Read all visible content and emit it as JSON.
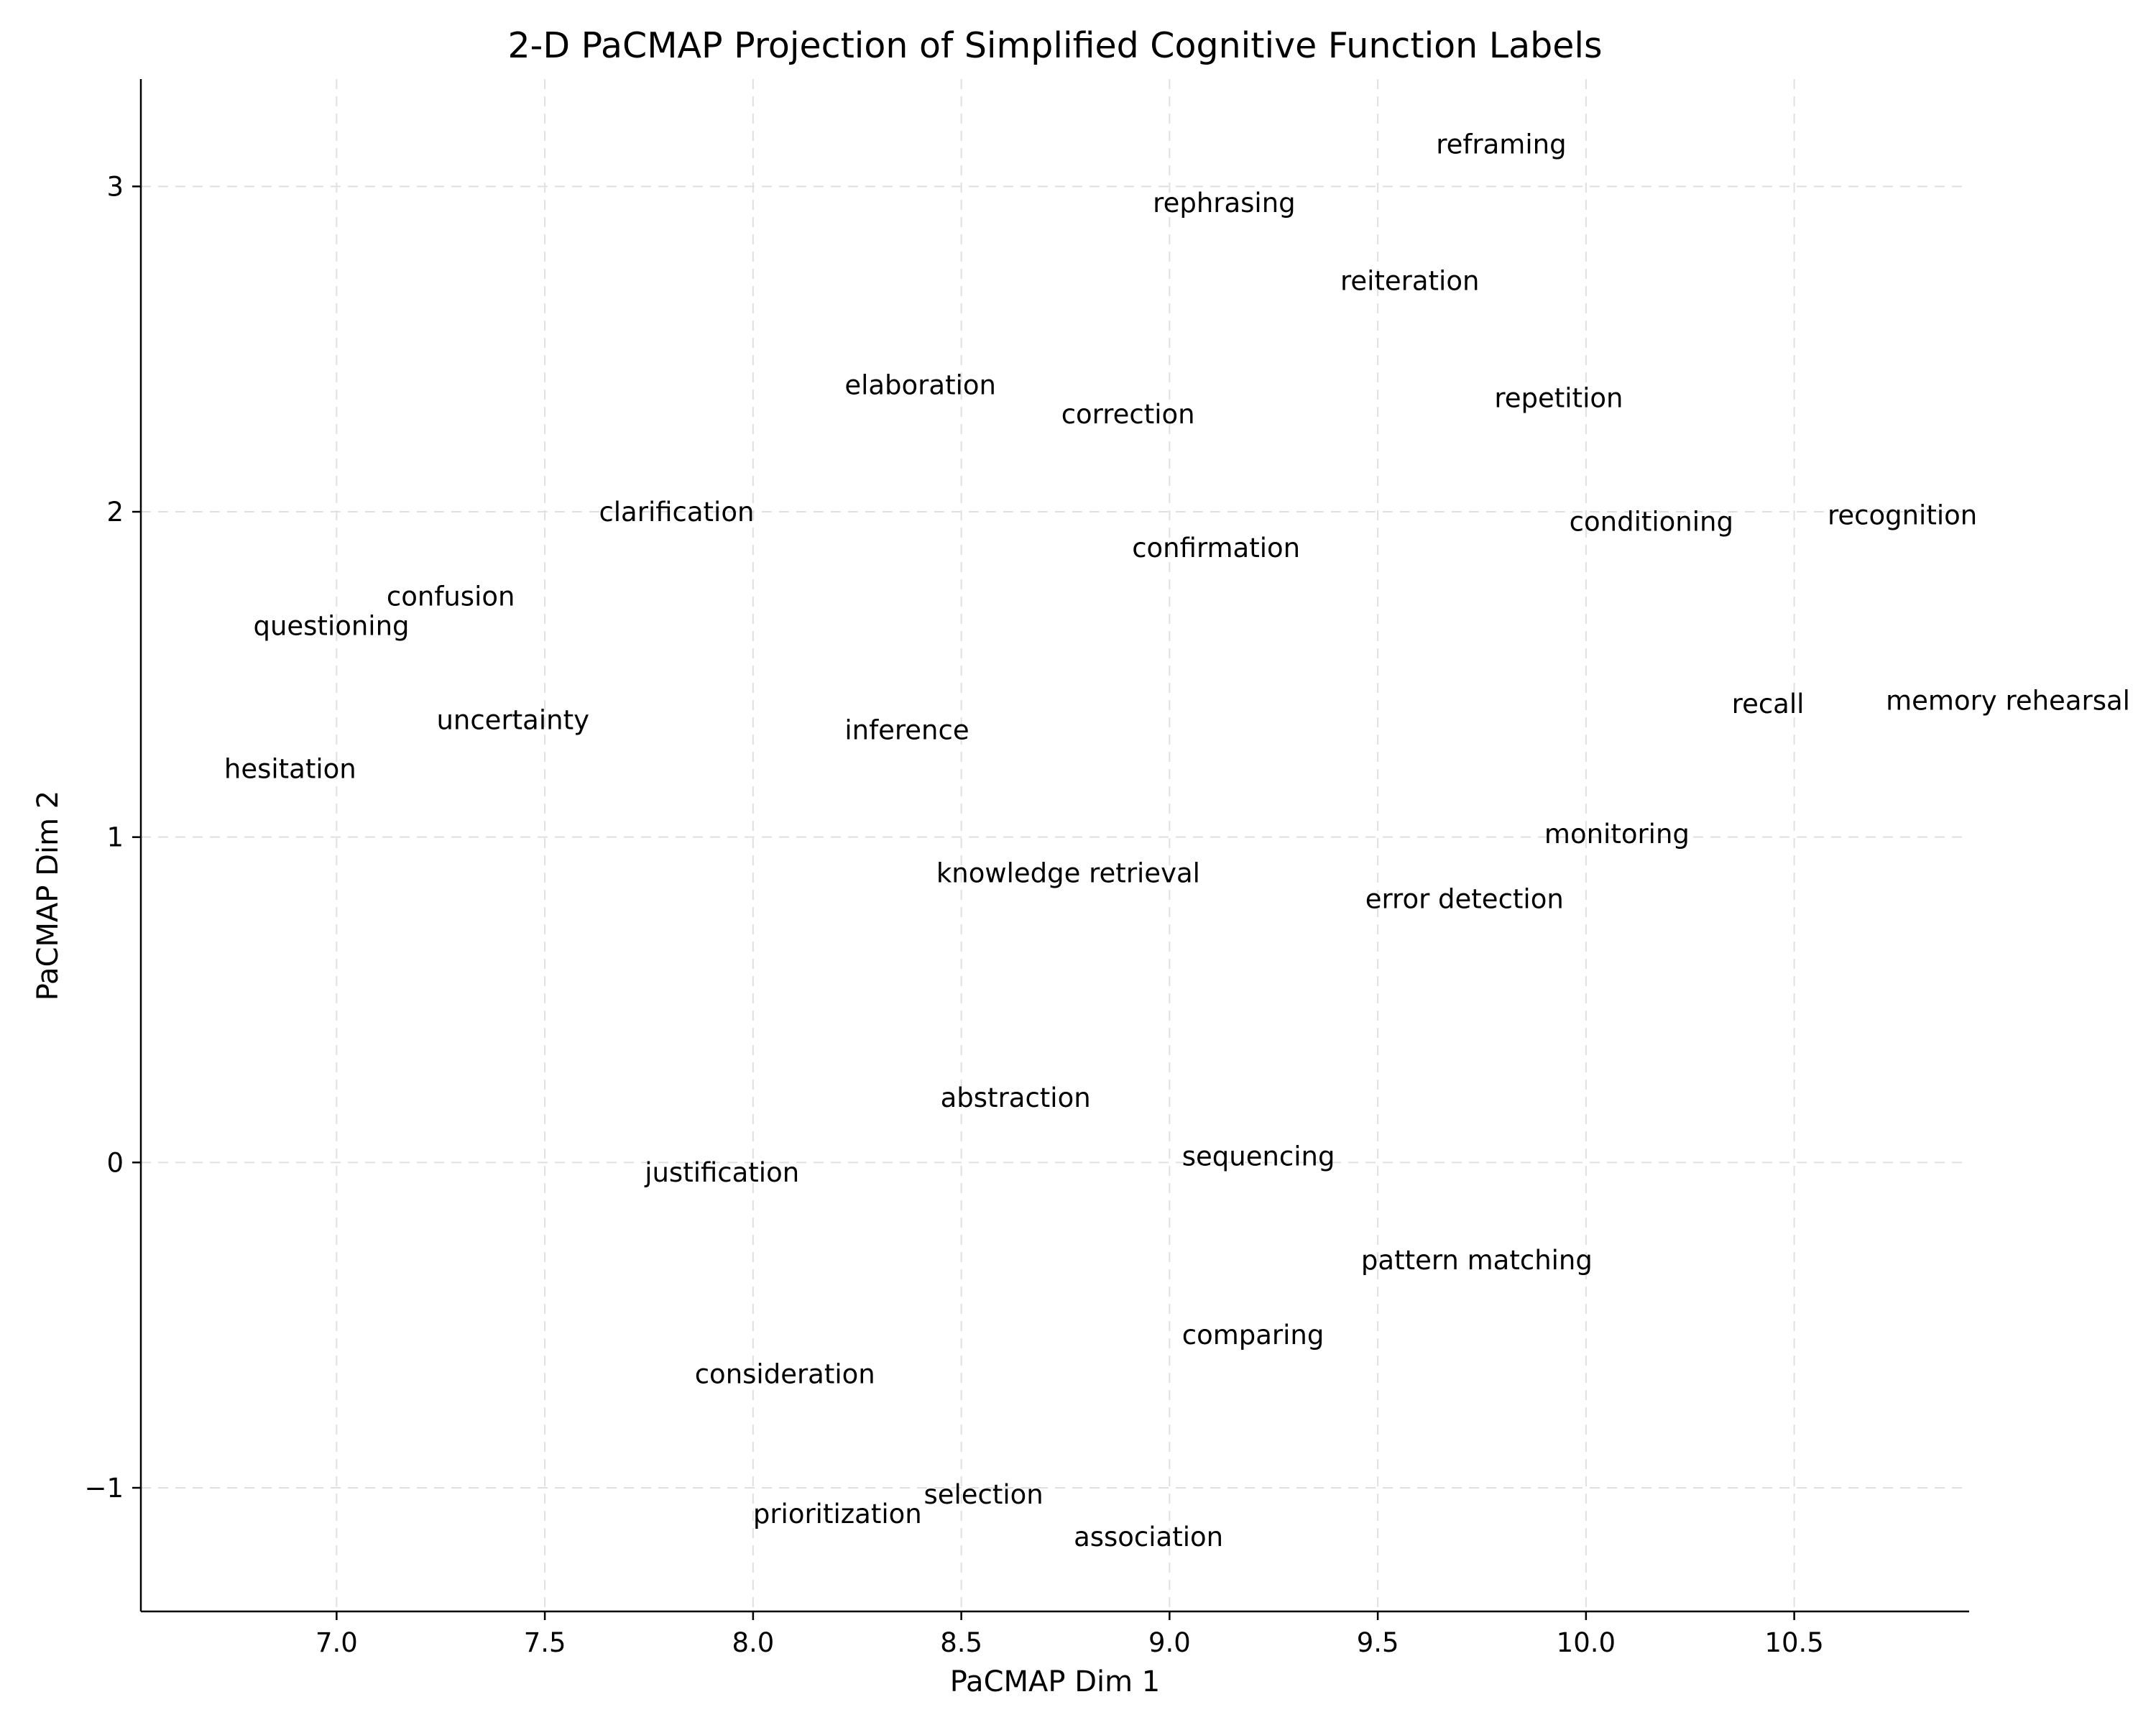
{
  "chart_data": {
    "type": "scatter",
    "title": "2-D PaCMAP Projection of Simplified Cognitive Function Labels",
    "xlabel": "PaCMAP Dim 1",
    "ylabel": "PaCMAP Dim 2",
    "xlim": [
      6.53,
      10.92
    ],
    "ylim": [
      -1.38,
      3.33
    ],
    "grid": true,
    "x_ticks": [
      7.0,
      7.5,
      8.0,
      8.5,
      9.0,
      9.5,
      10.0,
      10.5
    ],
    "x_tick_labels": [
      "7.0",
      "7.5",
      "8.0",
      "8.5",
      "9.0",
      "9.5",
      "10.0",
      "10.5"
    ],
    "y_ticks": [
      -1,
      0,
      1,
      2,
      3
    ],
    "y_tick_labels": [
      "−1",
      "0",
      "1",
      "2",
      "3"
    ],
    "points": [
      {
        "label": "reframing",
        "x": 9.64,
        "y": 3.13
      },
      {
        "label": "rephrasing",
        "x": 8.96,
        "y": 2.95
      },
      {
        "label": "reiteration",
        "x": 9.41,
        "y": 2.71
      },
      {
        "label": "elaboration",
        "x": 8.22,
        "y": 2.39
      },
      {
        "label": "correction",
        "x": 8.74,
        "y": 2.3
      },
      {
        "label": "repetition",
        "x": 9.78,
        "y": 2.35
      },
      {
        "label": "clarification",
        "x": 7.63,
        "y": 2.0
      },
      {
        "label": "confirmation",
        "x": 8.91,
        "y": 1.89
      },
      {
        "label": "conditioning",
        "x": 9.96,
        "y": 1.97
      },
      {
        "label": "recognition",
        "x": 10.58,
        "y": 1.99
      },
      {
        "label": "confusion",
        "x": 7.12,
        "y": 1.74
      },
      {
        "label": "questioning",
        "x": 6.8,
        "y": 1.65
      },
      {
        "label": "uncertainty",
        "x": 7.24,
        "y": 1.36
      },
      {
        "label": "inference",
        "x": 8.22,
        "y": 1.33
      },
      {
        "label": "recall",
        "x": 10.35,
        "y": 1.41
      },
      {
        "label": "memory rehearsal",
        "x": 10.72,
        "y": 1.42
      },
      {
        "label": "hesitation",
        "x": 6.73,
        "y": 1.21
      },
      {
        "label": "monitoring",
        "x": 9.9,
        "y": 1.01
      },
      {
        "label": "knowledge retrieval",
        "x": 8.44,
        "y": 0.89
      },
      {
        "label": "error detection",
        "x": 9.47,
        "y": 0.81
      },
      {
        "label": "abstraction",
        "x": 8.45,
        "y": 0.2
      },
      {
        "label": "sequencing",
        "x": 9.03,
        "y": 0.02
      },
      {
        "label": "justification",
        "x": 7.74,
        "y": -0.03
      },
      {
        "label": "pattern matching",
        "x": 9.46,
        "y": -0.3
      },
      {
        "label": "comparing",
        "x": 9.03,
        "y": -0.53
      },
      {
        "label": "consideration",
        "x": 7.86,
        "y": -0.65
      },
      {
        "label": "selection",
        "x": 8.41,
        "y": -1.02
      },
      {
        "label": "prioritization",
        "x": 8.0,
        "y": -1.08
      },
      {
        "label": "association",
        "x": 8.77,
        "y": -1.15
      }
    ]
  }
}
